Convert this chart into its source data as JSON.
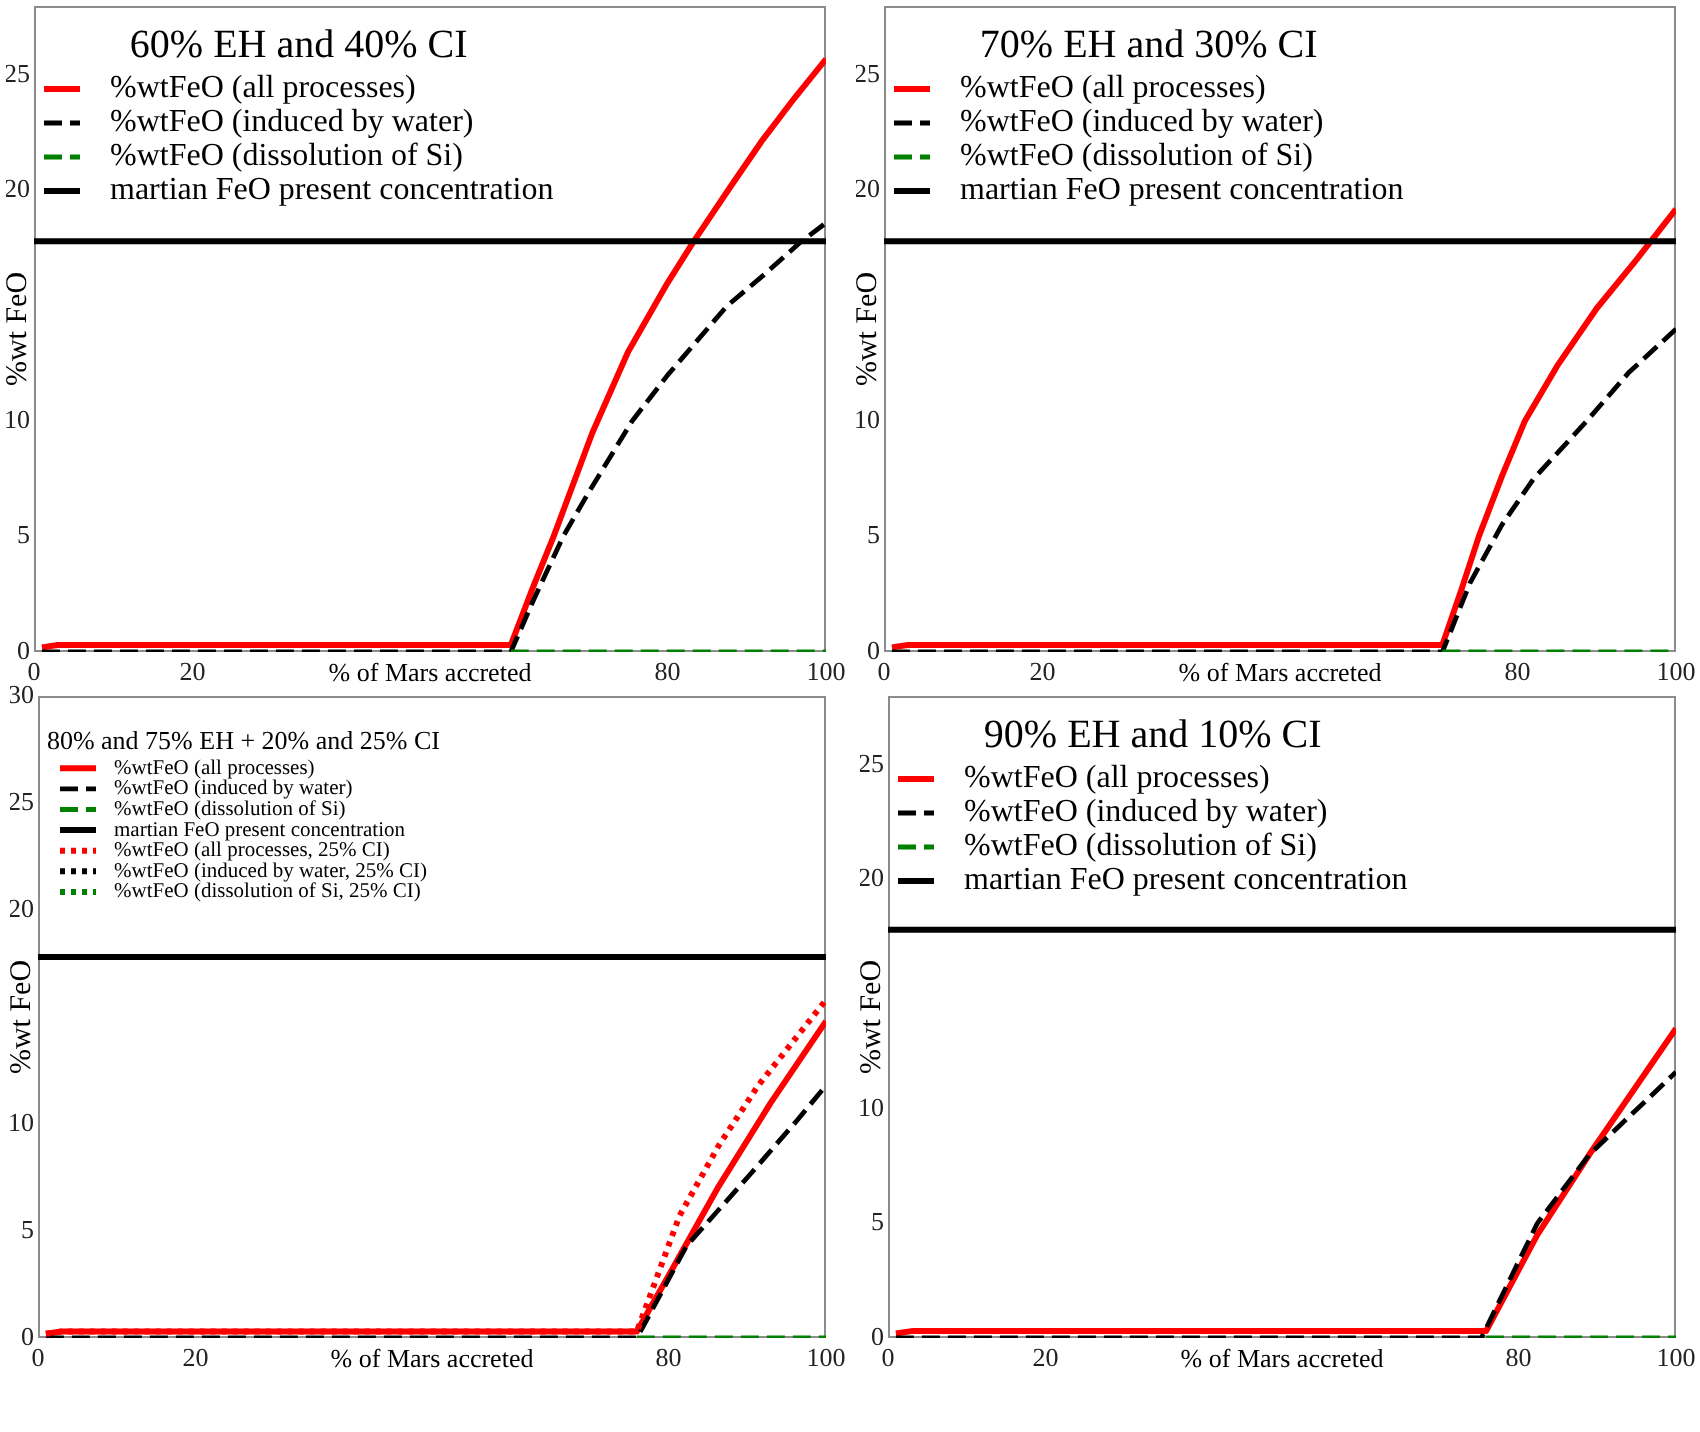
{
  "chart_data": [
    {
      "type": "line",
      "legend_title": "60% EH and 40% CI",
      "xlabel": "% of Mars accreted",
      "ylabel": "%wt FeO",
      "xlim": [
        0,
        100
      ],
      "xticks": [
        0,
        20,
        80,
        100
      ],
      "ylim": [
        0,
        28
      ],
      "yticks": [
        0,
        5,
        10,
        20,
        25
      ],
      "legend": "top left",
      "series": [
        {
          "name": "%wtFeO (all processes)",
          "color": "#ff0000",
          "line_style": "solid",
          "x": [
            1,
            3,
            60.2,
            63,
            65.6,
            70.5,
            75,
            80,
            83.3,
            88,
            92,
            96,
            100
          ],
          "values": [
            0.2,
            0.3,
            0.3,
            2.8,
            5.0,
            9.5,
            13.0,
            16.0,
            17.8,
            20.2,
            22.2,
            24.0,
            25.7
          ]
        },
        {
          "name": "%wtFeO (induced by water)",
          "color": "#000000",
          "line_style": "dashed",
          "x": [
            1,
            60.2,
            63,
            66.8,
            70,
            75.5,
            80,
            87.5,
            92,
            96.9,
            100
          ],
          "values": [
            0,
            0,
            2.2,
            5.0,
            6.9,
            10.0,
            12.0,
            15.0,
            16.3,
            17.8,
            18.6
          ]
        },
        {
          "name": "%wtFeO (dissolution of Si)",
          "color": "#008000",
          "line_style": "dashed",
          "x": [
            60.2,
            100
          ],
          "values": [
            0,
            0
          ]
        },
        {
          "name": "martian FeO present concentration",
          "color": "#000000",
          "line_style": "solid",
          "x": [
            0,
            100
          ],
          "values": [
            17.8,
            17.8
          ]
        }
      ]
    },
    {
      "type": "line",
      "legend_title": "70% EH and 30% CI",
      "xlabel": "% of Mars accreted",
      "ylabel": "%wt FeO",
      "xlim": [
        0,
        100
      ],
      "xticks": [
        0,
        20,
        80,
        100
      ],
      "ylim": [
        0,
        28
      ],
      "yticks": [
        0,
        5,
        10,
        20,
        25
      ],
      "legend": "top left",
      "series": [
        {
          "name": "%wtFeO (all processes)",
          "color": "#ff0000",
          "line_style": "solid",
          "x": [
            1,
            3,
            70.5,
            73,
            75.1,
            78,
            80.9,
            85,
            90,
            95,
            100
          ],
          "values": [
            0.2,
            0.3,
            0.3,
            2.8,
            5.0,
            7.6,
            10.0,
            12.4,
            14.9,
            17.0,
            19.2
          ]
        },
        {
          "name": "%wtFeO (induced by water)",
          "color": "#000000",
          "line_style": "dashed",
          "x": [
            1,
            70.5,
            74,
            78,
            82,
            88.7,
            94,
            100
          ],
          "values": [
            0,
            0,
            3.0,
            5.5,
            7.5,
            10.0,
            12.1,
            14.0
          ]
        },
        {
          "name": "%wtFeO (dissolution of Si)",
          "color": "#008000",
          "line_style": "dashed",
          "x": [
            70.5,
            100
          ],
          "values": [
            0,
            0
          ]
        },
        {
          "name": "martian FeO present concentration",
          "color": "#000000",
          "line_style": "solid",
          "x": [
            0,
            100
          ],
          "values": [
            17.8,
            17.8
          ]
        }
      ]
    },
    {
      "type": "line",
      "legend_title": "80% and 75% EH + 20% and 25% CI",
      "xlabel": "% of Mars accreted",
      "ylabel": "%wt FeO",
      "xlim": [
        0,
        100
      ],
      "xticks": [
        0,
        20,
        80,
        100
      ],
      "ylim": [
        0,
        30
      ],
      "yticks": [
        0,
        5,
        10,
        20,
        25,
        30
      ],
      "legend": "top left",
      "series": [
        {
          "name": "%wtFeO (all processes)",
          "color": "#ff0000",
          "line_style": "solid",
          "x": [
            1,
            3,
            76,
            80,
            86.4,
            93,
            100
          ],
          "values": [
            0.2,
            0.3,
            0.3,
            2.9,
            7.1,
            11.0,
            14.8
          ]
        },
        {
          "name": "%wtFeO (induced by water)",
          "color": "#000000",
          "line_style": "dashed",
          "x": [
            1,
            76,
            82.3,
            90.5,
            96.4,
            100
          ],
          "values": [
            0,
            0,
            4.3,
            7.7,
            10.2,
            11.8
          ]
        },
        {
          "name": "%wtFeO (dissolution of Si)",
          "color": "#008000",
          "line_style": "dashed",
          "x": [
            76,
            100
          ],
          "values": [
            0,
            0
          ]
        },
        {
          "name": "martian FeO present concentration",
          "color": "#000000",
          "line_style": "solid",
          "x": [
            0,
            100
          ],
          "values": [
            17.8,
            17.8
          ]
        },
        {
          "name": "%wtFeO (all processes, 25% CI)",
          "color": "#ff0000",
          "line_style": "dotted",
          "x": [
            1,
            3,
            76,
            81.4,
            86.4,
            91.4,
            100
          ],
          "values": [
            0.2,
            0.3,
            0.3,
            5.7,
            9.0,
            11.8,
            15.8
          ]
        },
        {
          "name": "%wtFeO (induced by water, 25% CI)",
          "color": "#000000",
          "line_style": "dotted"
        },
        {
          "name": "%wtFeO (dissolution of Si, 25% CI)",
          "color": "#008000",
          "line_style": "dotted"
        }
      ]
    },
    {
      "type": "line",
      "legend_title": "90% EH and 10% CI",
      "xlabel": "% of Mars accreted",
      "ylabel": "%wt FeO",
      "xlim": [
        0,
        100
      ],
      "xticks": [
        0,
        20,
        80,
        100
      ],
      "ylim": [
        0,
        28
      ],
      "yticks": [
        0,
        5,
        10,
        20,
        25
      ],
      "legend": "top left",
      "series": [
        {
          "name": "%wtFeO (all processes)",
          "color": "#ff0000",
          "line_style": "solid",
          "x": [
            1,
            3,
            75.9,
            82.4,
            89,
            100
          ],
          "values": [
            0.2,
            0.3,
            0.3,
            4.5,
            8.0,
            13.5
          ]
        },
        {
          "name": "%wtFeO (induced by water)",
          "color": "#000000",
          "line_style": "dashed",
          "x": [
            1,
            75.3,
            82.4,
            89,
            100
          ],
          "values": [
            0,
            0,
            5.0,
            8.0,
            11.6
          ]
        },
        {
          "name": "%wtFeO (dissolution of Si)",
          "color": "#008000",
          "line_style": "dashed",
          "x": [
            75.9,
            100
          ],
          "values": [
            0,
            0
          ]
        },
        {
          "name": "martian FeO present concentration",
          "color": "#000000",
          "line_style": "solid",
          "x": [
            0,
            100
          ],
          "values": [
            17.8,
            17.8
          ]
        }
      ]
    }
  ]
}
